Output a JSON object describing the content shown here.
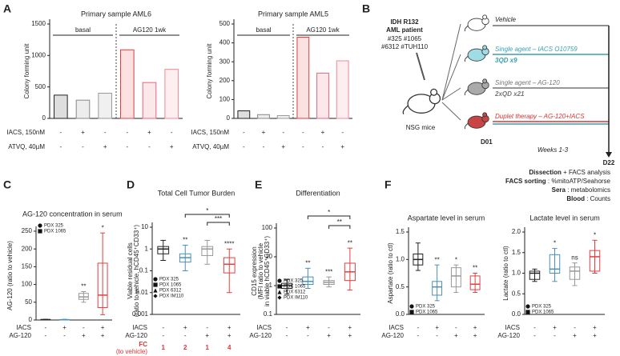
{
  "chart_data": [
    {
      "type": "bar",
      "panel_label": "A",
      "title": "Primary sample AML6",
      "ylabel": [
        "Colony forming unit"
      ],
      "values": [
        370,
        290,
        400,
        1090,
        570,
        780
      ],
      "colors": [
        "#222222",
        "#888888",
        "#999999",
        "#e03c3c",
        "#e8647c",
        "#ef8a96"
      ],
      "ylim": [
        0,
        1500
      ],
      "yticks": [
        0,
        500,
        1000,
        1500
      ],
      "group_labels": [
        "basal",
        "AG120 1wk"
      ],
      "rows": [
        {
          "label": "IACS, 150nM",
          "signs": [
            "-",
            "+",
            "-",
            "-",
            "+",
            "-"
          ]
        },
        {
          "label": "ATVQ, 40µM",
          "signs": [
            "-",
            "-",
            "+",
            "-",
            "-",
            "+"
          ]
        }
      ]
    },
    {
      "type": "bar",
      "title": "Primary sample AML5",
      "ylabel": [
        "Colony forming unit"
      ],
      "values": [
        40,
        20,
        15,
        430,
        240,
        305
      ],
      "colors": [
        "#222222",
        "#888888",
        "#999999",
        "#e03c3c",
        "#e8647c",
        "#ef8a96"
      ],
      "ylim": [
        0,
        500
      ],
      "yticks": [
        0,
        100,
        200,
        300,
        400,
        500
      ],
      "group_labels": [
        "basal",
        "AG120 1wk"
      ],
      "rows": [
        {
          "label": "IACS, 150nM",
          "signs": [
            "-",
            "+",
            "-",
            "-",
            "+",
            "-"
          ]
        },
        {
          "label": "ATVQ, 40µM",
          "signs": [
            "-",
            "-",
            "+",
            "-",
            "-",
            "+"
          ]
        }
      ]
    },
    {
      "type": "box",
      "panel_label": "C",
      "title": "AG-120 concentration in serum",
      "ylabel": [
        "AG-120 (ratio to vehicle)"
      ],
      "boxes": [
        {
          "min": 0,
          "q1": 0.5,
          "median": 1,
          "q3": 1.5,
          "max": 2
        },
        {
          "min": 0,
          "q1": 0.3,
          "median": 0.8,
          "q3": 1.2,
          "max": 2
        },
        {
          "min": 50,
          "q1": 58,
          "median": 65,
          "q3": 75,
          "max": 80
        },
        {
          "min": 15,
          "q1": 35,
          "median": 70,
          "q3": 160,
          "max": 245
        }
      ],
      "colors": [
        "#222222",
        "#4a90b8",
        "#999999",
        "#e04040"
      ],
      "ylim": [
        0,
        250
      ],
      "yticks": [
        0,
        50,
        100,
        150,
        200,
        250
      ],
      "annotations": [
        null,
        null,
        "**",
        "*"
      ],
      "legend": [
        "PDX 325",
        "PDX 1065"
      ],
      "legend_position": "upper left",
      "rows": [
        {
          "label": "IACS",
          "signs": [
            "-",
            "+",
            "-",
            "+"
          ]
        },
        {
          "label": "AG-120",
          "signs": [
            "-",
            "-",
            "+",
            "+"
          ]
        }
      ]
    },
    {
      "type": "box",
      "panel_label": "D",
      "title": "Total Cell Tumor Burden",
      "ylabel": [
        "Viable residual cells",
        "(ratio to vehicle, hCD45⁺CD33⁺)"
      ],
      "boxes": [
        {
          "min": 0.3,
          "q1": 0.6,
          "median": 1,
          "q3": 1.3,
          "max": 2.5
        },
        {
          "min": 0.1,
          "q1": 0.25,
          "median": 0.4,
          "q3": 0.6,
          "max": 1.5
        },
        {
          "min": 0.2,
          "q1": 0.5,
          "median": 1,
          "q3": 1.3,
          "max": 2.5
        },
        {
          "min": 0.01,
          "q1": 0.08,
          "median": 0.2,
          "q3": 0.4,
          "max": 1
        }
      ],
      "colors": [
        "#222222",
        "#4a90b8",
        "#999999",
        "#e04040"
      ],
      "log_scale": true,
      "ylim": [
        0.001,
        10
      ],
      "yticks": [
        0.001,
        0.01,
        0.1,
        1,
        10
      ],
      "annotations": [
        null,
        "**",
        null,
        "****"
      ],
      "comparisons": [
        "*",
        "***"
      ],
      "legend": [
        "PDX 325",
        "PDX 1065",
        "PDX 6312",
        "PDX IM110"
      ],
      "legend_position": "lower left",
      "rows": [
        {
          "label": "IACS",
          "signs": [
            "-",
            "+",
            "-",
            "+"
          ]
        },
        {
          "label": "AG-120",
          "signs": [
            "-",
            "-",
            "+",
            "+"
          ]
        }
      ],
      "fold_change": {
        "label": "FC",
        "sublabel": "(to vehicle)",
        "values": [
          1,
          2,
          1,
          4
        ]
      }
    },
    {
      "type": "box",
      "panel_label": "E",
      "title": "Differentiation",
      "ylabel": [
        "CD15 expression",
        "(MFI ratio to vehicle",
        "in viable hCD45⁺CD33⁺)"
      ],
      "boxes": [
        {
          "min": 0.5,
          "q1": 0.8,
          "median": 1,
          "q3": 1.2,
          "max": 1.6
        },
        {
          "min": 0.8,
          "q1": 1.1,
          "median": 1.4,
          "q3": 2,
          "max": 4
        },
        {
          "min": 0.9,
          "q1": 1.1,
          "median": 1.3,
          "q3": 1.5,
          "max": 2
        },
        {
          "min": 0.7,
          "q1": 1.5,
          "median": 3,
          "q3": 6,
          "max": 20
        }
      ],
      "colors": [
        "#222222",
        "#4a90b8",
        "#999999",
        "#e04040"
      ],
      "log_scale": true,
      "ylim": [
        0.1,
        100
      ],
      "yticks": [
        0.1,
        1,
        10,
        100
      ],
      "annotations": [
        null,
        "**",
        "***",
        "**"
      ],
      "comparisons": [
        "*",
        "**"
      ],
      "legend": [
        "PDX 325",
        "PDX 1065",
        "PDX 6312",
        "PDX IM110"
      ],
      "legend_position": "lower left",
      "rows": [
        {
          "label": "IACS",
          "signs": [
            "-",
            "+",
            "-",
            "+"
          ]
        },
        {
          "label": "AG-120",
          "signs": [
            "-",
            "-",
            "+",
            "+"
          ]
        }
      ]
    },
    {
      "type": "box",
      "panel_label": "F",
      "title": "Aspartate level in serum",
      "ylabel": [
        "Aspartate (ratio to ctl)"
      ],
      "boxes": [
        {
          "min": 0.8,
          "q1": 0.9,
          "median": 1.0,
          "q3": 1.1,
          "max": 1.3
        },
        {
          "min": 0.25,
          "q1": 0.35,
          "median": 0.5,
          "q3": 0.6,
          "max": 0.9
        },
        {
          "min": 0.4,
          "q1": 0.5,
          "median": 0.7,
          "q3": 0.85,
          "max": 0.9
        },
        {
          "min": 0.4,
          "q1": 0.45,
          "median": 0.55,
          "q3": 0.7,
          "max": 0.75
        }
      ],
      "colors": [
        "#222222",
        "#4a90b8",
        "#999999",
        "#e04040"
      ],
      "ylim": [
        0,
        1.5
      ],
      "yticks": [
        {
          "value": 0,
          "label": "0.0"
        },
        0.5,
        {
          "value": 1,
          "label": "1.0"
        },
        1.5
      ],
      "annotations": [
        null,
        "**",
        "*",
        "**"
      ],
      "legend": [
        "PDX 325",
        "PDX 1065"
      ],
      "legend_position": "lower left",
      "rows": [
        {
          "label": "IACS",
          "signs": [
            "-",
            "+",
            "-",
            "+"
          ]
        },
        {
          "label": "AG-120",
          "signs": [
            "-",
            "-",
            "+",
            "+"
          ]
        }
      ]
    },
    {
      "type": "box",
      "title": "Lactate level in serum",
      "ylabel": [
        "Lactate (ratio to ctl)"
      ],
      "boxes": [
        {
          "min": 0.8,
          "q1": 0.85,
          "median": 1.0,
          "q3": 1.05,
          "max": 1.1
        },
        {
          "min": 0.8,
          "q1": 1.0,
          "median": 1.1,
          "q3": 1.45,
          "max": 1.6
        },
        {
          "min": 0.7,
          "q1": 0.85,
          "median": 1.05,
          "q3": 1.15,
          "max": 1.25
        },
        {
          "min": 1.0,
          "q1": 1.05,
          "median": 1.4,
          "q3": 1.55,
          "max": 1.8
        }
      ],
      "colors": [
        "#222222",
        "#4a90b8",
        "#999999",
        "#e04040"
      ],
      "ylim": [
        0,
        2
      ],
      "yticks": [
        {
          "value": 0,
          "label": "0.0"
        },
        0.5,
        {
          "value": 1,
          "label": "1.0"
        },
        1.5,
        {
          "value": 2,
          "label": "2.0"
        }
      ],
      "annotations": [
        null,
        "*",
        "ns",
        "*"
      ],
      "legend": [
        "PDX 325",
        "PDX 1065"
      ],
      "legend_position": "lower left",
      "rows": [
        {
          "label": "IACS",
          "signs": [
            "-",
            "+",
            "-",
            "+"
          ]
        },
        {
          "label": "AG-120",
          "signs": [
            "-",
            "-",
            "+",
            "+"
          ]
        }
      ]
    }
  ],
  "diagram": {
    "panel_label": "B",
    "patient": [
      "IDH R132",
      "AML patient",
      "#325 #1065",
      "#6312 #TUH110"
    ],
    "mouse_label": "NSG mice",
    "arms": [
      {
        "label": "Vehicle"
      },
      {
        "label": "Single agent – IACS O10759",
        "schedule": "3QD x9"
      },
      {
        "label": "Single agent – AG-120",
        "schedule": "2xQD x21"
      },
      {
        "label": "Duplet therapy – AG-120+IACS"
      }
    ],
    "start": "D01",
    "duration": "Weeks 1-3",
    "end": "D22",
    "readouts": [
      {
        "term": "Dissection",
        "text": " + FACS analysis"
      },
      {
        "term": "FACS sorting",
        "text": " : %mitoATP/Seahorse"
      },
      {
        "term": "Sera",
        "text": " : metabolomics"
      },
      {
        "term": "Blood",
        "text": " : Counts"
      }
    ]
  }
}
